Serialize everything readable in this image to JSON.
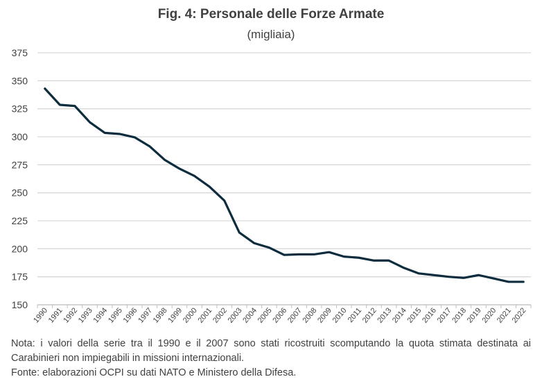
{
  "chart_data": {
    "type": "line",
    "title": "Fig. 4: Personale delle Forze Armate",
    "subtitle": "(migliaia)",
    "x": [
      "1990",
      "1991",
      "1992",
      "1993",
      "1994",
      "1995",
      "1996",
      "1997",
      "1998",
      "1999",
      "2000",
      "2001",
      "2002",
      "2003",
      "2004",
      "2005",
      "2006",
      "2007",
      "2008",
      "2009",
      "2010",
      "2011",
      "2012",
      "2013",
      "2014",
      "2015",
      "2016",
      "2017",
      "2018",
      "2019",
      "2020",
      "2021",
      "2022"
    ],
    "series": [
      {
        "values": [
          343,
          328.5,
          327.5,
          313,
          303.5,
          302.5,
          299.5,
          291.5,
          279.5,
          271.5,
          265,
          255.5,
          243,
          214.5,
          205,
          201,
          194.5,
          195,
          195,
          197,
          193,
          192,
          189.5,
          189.5,
          183,
          178,
          176.5,
          175,
          174,
          176.5,
          173.5,
          170.5,
          170.5
        ]
      }
    ],
    "ylim": [
      150,
      375
    ],
    "yticks": [
      "150",
      "175",
      "200",
      "225",
      "250",
      "275",
      "300",
      "325",
      "350",
      "375"
    ],
    "grid": "horizontal",
    "line_color": "#0d2c3d",
    "grid_color": "#d9d9d9"
  },
  "notes": {
    "line1": "Nota: i valori della serie tra il 1990 e il 2007 sono stati ricostruiti scomputando la quota stimata destinata ai Carabinieri non impiegabili in missioni internazionali.",
    "source": "Fonte: elaborazioni OCPI su dati NATO e Ministero della Difesa."
  }
}
